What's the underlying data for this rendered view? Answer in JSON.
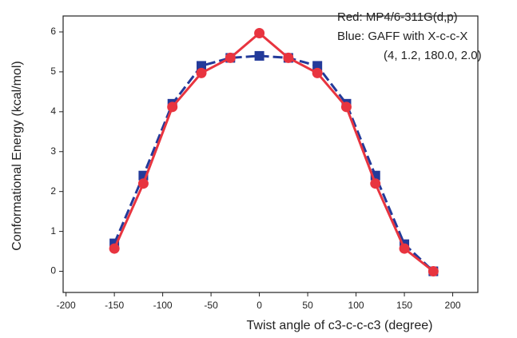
{
  "chart_data": {
    "type": "line",
    "x_label": "Twist angle of c3-c-c-c3 (degree)",
    "y_label": "Conformational Energy (kcal/mol)",
    "annotations": [
      "Red:  MP4/6-311G(d,p)",
      "Blue: GAFF with X-c-c-X",
      "(4, 1.2, 180.0, 2.0)"
    ],
    "x": [
      -150,
      -120,
      -90,
      -60,
      -30,
      0,
      30,
      60,
      90,
      120,
      150,
      180
    ],
    "series": [
      {
        "color": "#233a9a",
        "dashed": true,
        "marker": "square",
        "values": [
          0.7,
          2.4,
          4.2,
          5.15,
          5.35,
          5.4,
          5.35,
          5.15,
          4.2,
          2.4,
          0.68,
          0
        ]
      },
      {
        "color": "#e8343f",
        "dashed": false,
        "marker": "circle",
        "values": [
          0.57,
          2.2,
          4.12,
          4.97,
          5.35,
          5.97,
          5.35,
          4.97,
          4.12,
          2.2,
          0.57,
          0
        ]
      }
    ],
    "xlim": [
      -203,
      226
    ],
    "ylim": [
      -0.53,
      6.4
    ],
    "xticks": [
      -200,
      -150,
      -100,
      -50,
      0,
      50,
      100,
      150,
      200
    ],
    "yticks": [
      0,
      1,
      2,
      3,
      4,
      5,
      6
    ]
  }
}
